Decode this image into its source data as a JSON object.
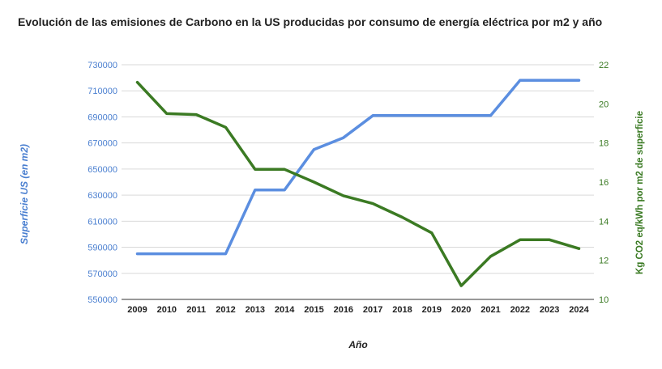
{
  "chart_data": {
    "type": "line",
    "title": "Evolución de las emisiones de Carbono en la US producidas por consumo de energía eléctrica por m2 y año",
    "xlabel": "Año",
    "ylabel_left": "Superficie US (en m2)",
    "ylabel_right": "Kg CO2 eq/kWh por m2 de superficie",
    "categories": [
      "2009",
      "2010",
      "2011",
      "2012",
      "2013",
      "2014",
      "2015",
      "2016",
      "2017",
      "2018",
      "2019",
      "2020",
      "2021",
      "2022",
      "2023",
      "2024"
    ],
    "ylim_left": [
      550000,
      730000
    ],
    "yticks_left": [
      "550000",
      "570000",
      "590000",
      "610000",
      "630000",
      "650000",
      "670000",
      "690000",
      "710000",
      "730000"
    ],
    "ylim_right": [
      10,
      22
    ],
    "yticks_right": [
      "10",
      "12",
      "14",
      "16",
      "18",
      "20",
      "22"
    ],
    "grid": true,
    "series": [
      {
        "name": "Superficie US (en m2)",
        "axis": "left",
        "color": "#5b8ee0",
        "values": [
          585000,
          585000,
          585000,
          585000,
          634000,
          634000,
          665000,
          674000,
          691000,
          691000,
          691000,
          691000,
          691000,
          718000,
          718000,
          718000
        ]
      },
      {
        "name": "Kg CO2 eq/kWh por m2 de superficie",
        "axis": "right",
        "color": "#3b7a23",
        "values": [
          21.1,
          19.5,
          19.45,
          18.8,
          16.65,
          16.65,
          16.0,
          15.3,
          14.9,
          14.2,
          13.4,
          10.7,
          12.2,
          13.05,
          13.05,
          12.6
        ]
      }
    ]
  }
}
